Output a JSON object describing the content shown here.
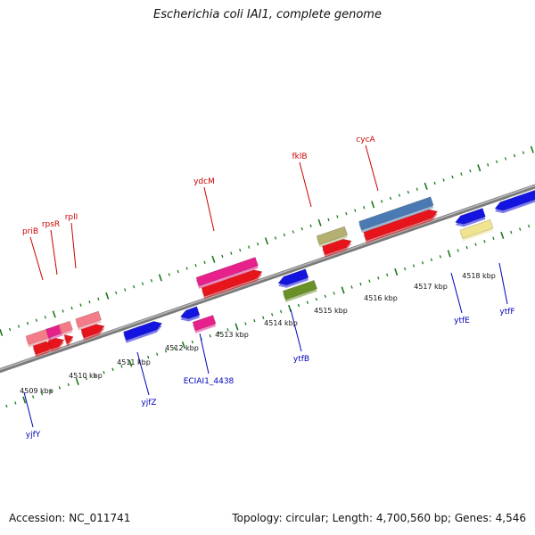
{
  "title": "Escherichia coli IAI1, complete genome",
  "footer": {
    "accession": "Accession: NC_011741",
    "summary": "Topology: circular; Length: 4,700,560 bp; Genes: 4,546"
  },
  "colors": {
    "red": "#e8141c",
    "pink": "#f47c88",
    "magenta": "#e8208c",
    "blue": "#1414e0",
    "steelblue": "#4a7ab4",
    "olive": "#b4b070",
    "green": "#6a9028",
    "khaki": "#f0e490",
    "cyan": "#18c8d8",
    "tick": "#1a7a1a",
    "axis": "#909090",
    "label_top": "#cc0000",
    "label_bottom": "#0000bb"
  },
  "kbp_labels": [
    "4509 kbp",
    "4510 kbp",
    "4511 kbp",
    "4512 kbp",
    "4513 kbp",
    "4514 kbp",
    "4515 kbp",
    "4516 kbp",
    "4517 kbp",
    "4518 kbp"
  ],
  "top_genes": [
    "priB",
    "rpsR",
    "rplI",
    "ydcM",
    "fklB",
    "cycA"
  ],
  "bottom_genes": [
    "yjfY",
    "yjfZ",
    "ECIAI1_4438",
    "ytfB",
    "ytfE",
    "ytfF"
  ]
}
